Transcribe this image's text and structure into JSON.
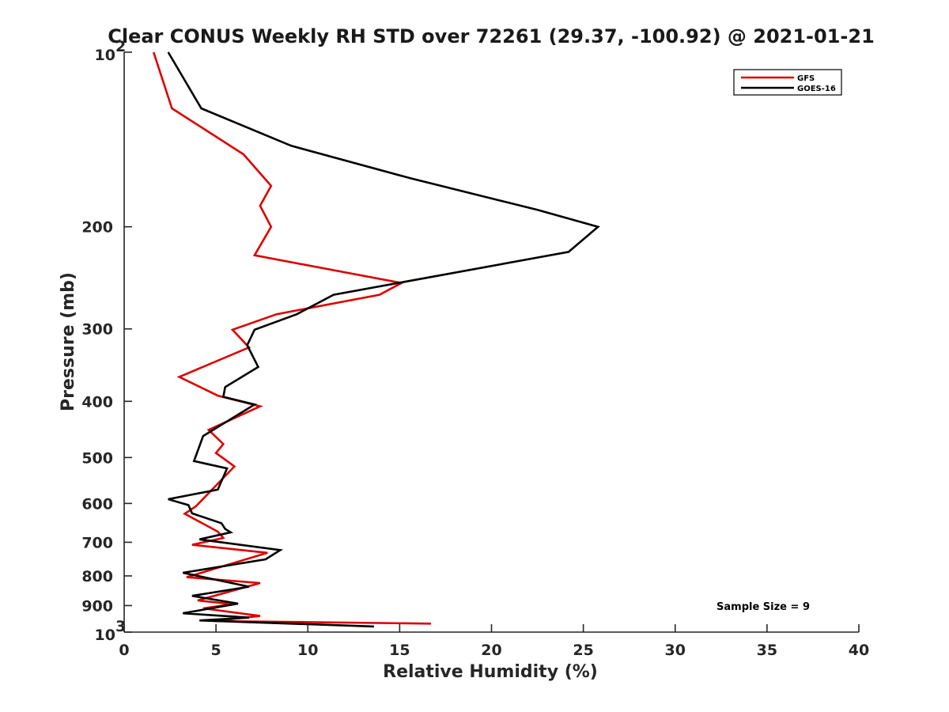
{
  "chart_data": {
    "type": "line",
    "title": "Clear CONUS Weekly RH STD over 72261 (29.37, -100.92) @ 2021-01-21",
    "xlabel": "Relative Humidity (%)",
    "ylabel": "Pressure (mb)",
    "xlim": [
      0,
      40
    ],
    "ylim": [
      100,
      1000
    ],
    "y_scale": "log",
    "y_reversed": true,
    "x_ticks": [
      0,
      5,
      10,
      15,
      20,
      25,
      30,
      35,
      40
    ],
    "y_ticks": [
      {
        "value": 100,
        "label": "10",
        "sup": "2"
      },
      {
        "value": 200,
        "label": "200"
      },
      {
        "value": 300,
        "label": "300"
      },
      {
        "value": 400,
        "label": "400"
      },
      {
        "value": 500,
        "label": "500"
      },
      {
        "value": 600,
        "label": "600"
      },
      {
        "value": 700,
        "label": "700"
      },
      {
        "value": 800,
        "label": "800"
      },
      {
        "value": 900,
        "label": "900"
      },
      {
        "value": 1000,
        "label": "10",
        "sup": "3"
      }
    ],
    "grid": false,
    "legend_position": "top-right",
    "annotation": "Sample Size = 9",
    "series": [
      {
        "name": "GFS",
        "color": "#dd0000",
        "points": [
          [
            1.6,
            100
          ],
          [
            2.6,
            125
          ],
          [
            6.5,
            150
          ],
          [
            8.0,
            170
          ],
          [
            7.4,
            184
          ],
          [
            8.0,
            200
          ],
          [
            7.1,
            224
          ],
          [
            15.1,
            250
          ],
          [
            13.9,
            262
          ],
          [
            8.3,
            283
          ],
          [
            5.9,
            301
          ],
          [
            6.8,
            323
          ],
          [
            3.0,
            363
          ],
          [
            5.1,
            391
          ],
          [
            7.4,
            408
          ],
          [
            4.6,
            448
          ],
          [
            5.4,
            474
          ],
          [
            5.0,
            491
          ],
          [
            6.0,
            518
          ],
          [
            4.9,
            563
          ],
          [
            3.9,
            607
          ],
          [
            3.3,
            625
          ],
          [
            5.1,
            671
          ],
          [
            5.4,
            688
          ],
          [
            3.7,
            707
          ],
          [
            7.8,
            730
          ],
          [
            3.4,
            804
          ],
          [
            7.4,
            823
          ],
          [
            4.0,
            882
          ],
          [
            5.9,
            895
          ],
          [
            4.3,
            910
          ],
          [
            7.4,
            938
          ],
          [
            4.9,
            957
          ],
          [
            16.7,
            967
          ]
        ]
      },
      {
        "name": "GOES-16",
        "color": "#000000",
        "points": [
          [
            2.4,
            100
          ],
          [
            4.2,
            125
          ],
          [
            9.1,
            145
          ],
          [
            15.6,
            165
          ],
          [
            22.5,
            187
          ],
          [
            25.8,
            200
          ],
          [
            24.2,
            221
          ],
          [
            11.4,
            262
          ],
          [
            9.4,
            283
          ],
          [
            7.1,
            301
          ],
          [
            6.7,
            320
          ],
          [
            7.3,
            349
          ],
          [
            5.5,
            378
          ],
          [
            5.4,
            393
          ],
          [
            7.1,
            405
          ],
          [
            4.3,
            459
          ],
          [
            3.8,
            507
          ],
          [
            5.6,
            522
          ],
          [
            5.1,
            568
          ],
          [
            2.4,
            590
          ],
          [
            3.5,
            604
          ],
          [
            3.7,
            624
          ],
          [
            5.3,
            649
          ],
          [
            5.5,
            664
          ],
          [
            5.8,
            673
          ],
          [
            4.1,
            692
          ],
          [
            8.5,
            722
          ],
          [
            7.7,
            749
          ],
          [
            3.2,
            790
          ],
          [
            6.8,
            835
          ],
          [
            3.7,
            866
          ],
          [
            6.2,
            893
          ],
          [
            3.2,
            928
          ],
          [
            6.8,
            944
          ],
          [
            4.1,
            955
          ],
          [
            13.6,
            978
          ]
        ]
      }
    ]
  }
}
